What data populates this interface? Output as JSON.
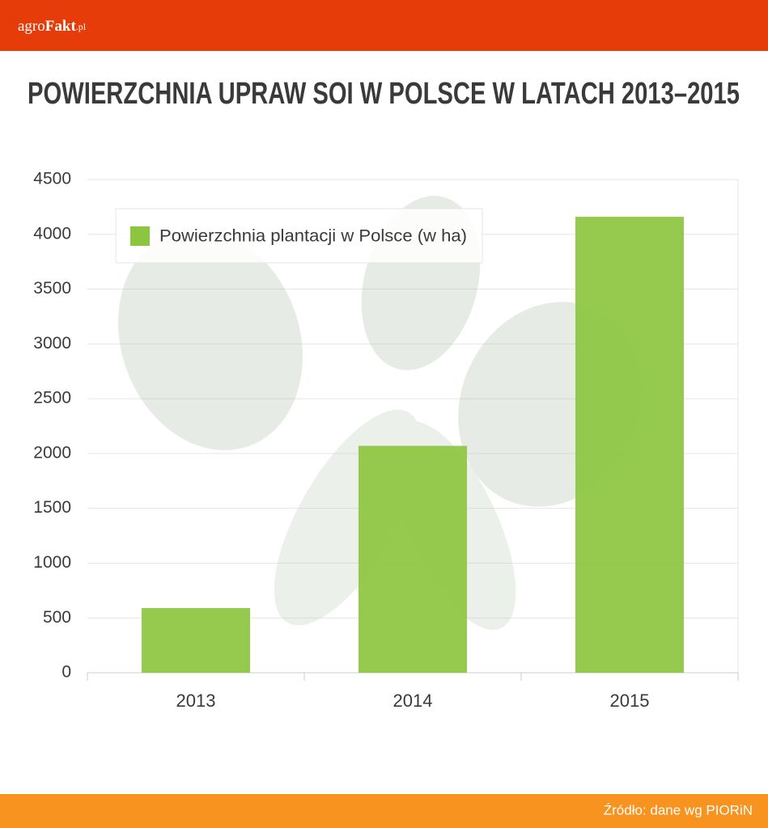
{
  "header": {
    "brand": [
      "agro",
      "Fakt",
      ".pl"
    ]
  },
  "chart_data": {
    "type": "bar",
    "title": "POWIERZCHNIA UPRAW SOI W POLSCE W LATACH 2013–2015",
    "categories": [
      "2013",
      "2014",
      "2015"
    ],
    "series": [
      {
        "name": "Powierzchnia plantacji w Polsce (w ha)",
        "color": "#8cc63f",
        "values": [
          590,
          2070,
          4160
        ]
      }
    ],
    "ylim": [
      0,
      4500
    ],
    "yticks": [
      0,
      500,
      1000,
      1500,
      2000,
      2500,
      3000,
      3500,
      4000,
      4500
    ],
    "grid": true,
    "legend": "upper left"
  },
  "footer": {
    "source": "Źródło: dane wg PIORiN"
  }
}
